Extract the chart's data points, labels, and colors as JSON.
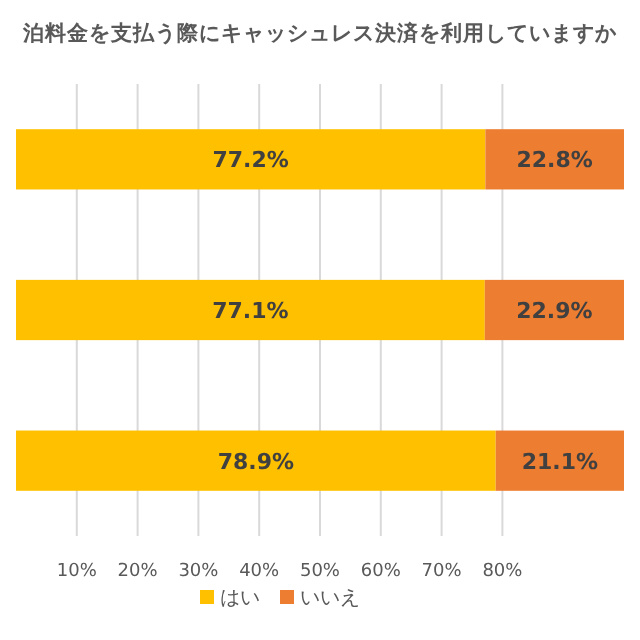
{
  "chart_data": {
    "type": "bar",
    "orientation": "horizontal",
    "stacked": true,
    "title": "泊料金を支払う際にキャッシュレス決済を利用していますか",
    "categories": [
      null,
      null,
      null
    ],
    "series": [
      {
        "name": "はい",
        "color": "#ffc000",
        "values": [
          77.2,
          77.1,
          78.9
        ],
        "value_labels": [
          "77.2%",
          "77.1%",
          "78.9%"
        ]
      },
      {
        "name": "いいえ",
        "color": "#ed7d31",
        "values": [
          22.8,
          22.9,
          21.1
        ],
        "value_labels": [
          "22.8%",
          "22.9%",
          "21.1%"
        ]
      }
    ],
    "xlim": [
      0,
      100
    ],
    "xticks": [
      {
        "value": 10,
        "label": "10%"
      },
      {
        "value": 20,
        "label": "20%"
      },
      {
        "value": 30,
        "label": "30%"
      },
      {
        "value": 40,
        "label": "40%"
      },
      {
        "value": 50,
        "label": "50%"
      },
      {
        "value": 60,
        "label": "60%"
      },
      {
        "value": 70,
        "label": "70%"
      },
      {
        "value": 80,
        "label": "80%"
      }
    ],
    "grid": "x",
    "legend": "bottom"
  }
}
